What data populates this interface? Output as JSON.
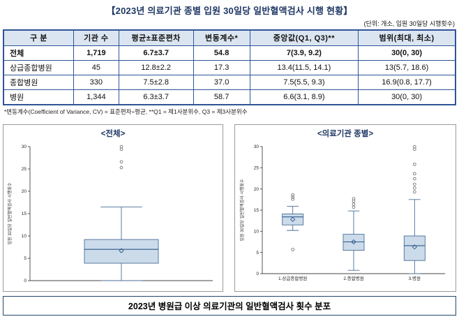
{
  "title": "【2023년 의료기관 종별 입원 30일당 일반혈액검사 시행 현황】",
  "unit_note": "(단위: 개소, 입원 30일당 시행횟수)",
  "table": {
    "headers": [
      "구 분",
      "기관 수",
      "평균±표준편차",
      "변동계수*",
      "중앙값(Q1, Q3)**",
      "범위(최대, 최소)"
    ],
    "rows": [
      {
        "cells": [
          "전체",
          "1,719",
          "6.7±3.7",
          "54.8",
          "7(3.9, 9.2)",
          "30(0, 30)"
        ],
        "bold": true
      },
      {
        "cells": [
          "상급종합병원",
          "45",
          "12.8±2.2",
          "17.3",
          "13.4(11.5, 14.1)",
          "13(5.7, 18.6)"
        ],
        "bold": false
      },
      {
        "cells": [
          "종합병원",
          "330",
          "7.5±2.8",
          "37.0",
          "7.5(5.5, 9.3)",
          "16.9(0.8, 17.7)"
        ],
        "bold": false
      },
      {
        "cells": [
          "병원",
          "1,344",
          "6.3±3.7",
          "58.7",
          "6.6(3.1, 8.9)",
          "30(0, 30)"
        ],
        "bold": false
      }
    ]
  },
  "footnote": "*변동계수(Coefficient of Variance, CV) = 표준편차÷평균, **Q1 = 제1사분위수, Q3 = 제3사분위수",
  "caption": "2023년 병원급 이상 의료기관의 일반혈액검사 횟수 분포",
  "colors": {
    "accent_navy": "#1f3864",
    "table_border": "#2e5496",
    "header_bg": "#dbe5f1",
    "box_fill": "#ccdbea",
    "box_stroke": "#4a6d96",
    "median_stroke": "#2f5a8c",
    "outlier_stroke": "#666666",
    "axis_color": "#444444"
  },
  "chart_data": [
    {
      "type": "boxplot",
      "title": "<전체>",
      "ylabel": "입원 30일당 일반혈액검사 시행횟수",
      "ylim": [
        0,
        30
      ],
      "yticks": [
        0,
        5,
        10,
        15,
        20,
        25,
        30
      ],
      "groups": [
        {
          "label": "",
          "q1": 3.9,
          "median": 7.0,
          "q3": 9.2,
          "mean": 6.7,
          "whisker_low": 0,
          "whisker_high": 16.5,
          "outliers": [
            25.3,
            26.6,
            29.4,
            30
          ]
        }
      ]
    },
    {
      "type": "boxplot",
      "title": "<의료기관 종별>",
      "ylabel": "입원 30일당 일반혈액검사 시행횟수",
      "ylim": [
        0,
        30
      ],
      "yticks": [
        0,
        5,
        10,
        15,
        20,
        25,
        30
      ],
      "groups": [
        {
          "label": "1.상급종합병원",
          "q1": 11.5,
          "median": 13.4,
          "q3": 14.1,
          "mean": 12.8,
          "whisker_low": 10.2,
          "whisker_high": 15.9,
          "outliers": [
            5.7,
            17.6,
            18.1,
            18.6
          ]
        },
        {
          "label": "2.종합병원",
          "q1": 5.5,
          "median": 7.5,
          "q3": 9.3,
          "mean": 7.5,
          "whisker_low": 0.8,
          "whisker_high": 14.8,
          "outliers": [
            15.7,
            16.4,
            17.1,
            17.7
          ]
        },
        {
          "label": "3.병원",
          "q1": 3.1,
          "median": 6.6,
          "q3": 8.9,
          "mean": 6.3,
          "whisker_low": 0,
          "whisker_high": 17.5,
          "outliers": [
            19.3,
            20.2,
            21.1,
            22.4,
            23.6,
            25.8,
            29.4,
            30
          ]
        }
      ]
    }
  ]
}
